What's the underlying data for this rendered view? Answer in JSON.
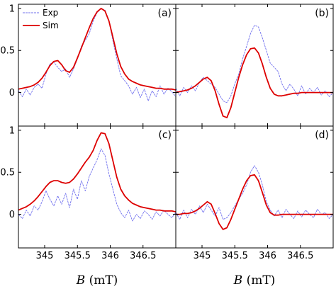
{
  "chart_data": {
    "type": "line",
    "layout": "2x2 grid",
    "xlim": [
      344.6,
      347.0
    ],
    "xticks": [
      "345",
      "345.5",
      "346",
      "346.5"
    ],
    "xtick_values": [
      345,
      345.5,
      346,
      346.5
    ],
    "xlabel_italic": "B",
    "xlabel_unit": "(mT)",
    "xlabels_shown_under": [
      "c",
      "d"
    ],
    "ylim": [
      -0.4,
      1.05
    ],
    "yticks": [
      "0",
      "0.5",
      "1"
    ],
    "ytick_values": [
      0,
      0.5,
      1
    ],
    "legend": {
      "panel": "a",
      "placement": "top-left",
      "entries": [
        {
          "label": "Exp",
          "color": "#7070ee",
          "style": "thin dashed"
        },
        {
          "label": "Sim",
          "color": "#dd0000",
          "style": "solid"
        }
      ]
    },
    "panels": [
      {
        "label": "(a)",
        "series": [
          {
            "name": "Exp",
            "color": "#7070ee",
            "x": [
              344.6,
              344.66,
              344.72,
              344.78,
              344.84,
              344.9,
              344.96,
              345.02,
              345.08,
              345.14,
              345.2,
              345.26,
              345.32,
              345.38,
              345.44,
              345.5,
              345.56,
              345.62,
              345.68,
              345.74,
              345.8,
              345.86,
              345.92,
              345.98,
              346.04,
              346.1,
              346.16,
              346.22,
              346.28,
              346.34,
              346.4,
              346.46,
              346.52,
              346.58,
              346.64,
              346.7,
              346.76,
              346.82,
              346.88,
              346.94,
              347.0
            ],
            "y": [
              0.02,
              -0.05,
              0.04,
              -0.03,
              0.06,
              0.1,
              0.05,
              0.22,
              0.34,
              0.36,
              0.3,
              0.25,
              0.28,
              0.18,
              0.28,
              0.4,
              0.55,
              0.62,
              0.7,
              0.85,
              0.95,
              1.0,
              0.98,
              0.85,
              0.62,
              0.4,
              0.2,
              0.14,
              0.08,
              -0.02,
              0.06,
              -0.06,
              0.04,
              -0.1,
              0.02,
              -0.05,
              0.08,
              -0.02,
              0.05,
              0.01,
              -0.05
            ]
          },
          {
            "name": "Sim",
            "color": "#dd0000",
            "x": [
              344.6,
              344.66,
              344.72,
              344.78,
              344.84,
              344.9,
              344.96,
              345.02,
              345.08,
              345.14,
              345.2,
              345.26,
              345.32,
              345.38,
              345.44,
              345.5,
              345.56,
              345.62,
              345.68,
              345.74,
              345.8,
              345.86,
              345.92,
              345.98,
              346.04,
              346.1,
              346.16,
              346.22,
              346.28,
              346.34,
              346.4,
              346.46,
              346.52,
              346.58,
              346.64,
              346.7,
              346.76,
              346.82,
              346.88,
              346.94,
              347.0
            ],
            "y": [
              0.04,
              0.05,
              0.06,
              0.07,
              0.09,
              0.12,
              0.17,
              0.24,
              0.32,
              0.37,
              0.38,
              0.33,
              0.26,
              0.24,
              0.3,
              0.41,
              0.53,
              0.65,
              0.77,
              0.88,
              0.96,
              1.0,
              0.97,
              0.85,
              0.66,
              0.46,
              0.31,
              0.22,
              0.16,
              0.13,
              0.11,
              0.09,
              0.08,
              0.07,
              0.06,
              0.05,
              0.05,
              0.04,
              0.04,
              0.04,
              0.03
            ]
          }
        ]
      },
      {
        "label": "(b)",
        "series": [
          {
            "name": "Exp",
            "color": "#7070ee",
            "x": [
              344.6,
              344.66,
              344.72,
              344.78,
              344.84,
              344.9,
              344.96,
              345.02,
              345.08,
              345.14,
              345.2,
              345.26,
              345.32,
              345.38,
              345.44,
              345.5,
              345.56,
              345.62,
              345.68,
              345.74,
              345.8,
              345.86,
              345.92,
              345.98,
              346.04,
              346.1,
              346.16,
              346.22,
              346.28,
              346.34,
              346.4,
              346.46,
              346.52,
              346.58,
              346.64,
              346.7,
              346.76,
              346.82,
              346.88,
              346.94,
              347.0
            ],
            "y": [
              0.05,
              -0.04,
              0.06,
              0.0,
              0.08,
              0.02,
              0.12,
              0.18,
              0.14,
              0.1,
              0.06,
              -0.02,
              -0.1,
              -0.12,
              -0.04,
              0.1,
              0.22,
              0.4,
              0.55,
              0.7,
              0.8,
              0.78,
              0.65,
              0.5,
              0.35,
              0.3,
              0.25,
              0.1,
              0.02,
              0.1,
              0.04,
              -0.04,
              0.08,
              -0.02,
              0.05,
              0.0,
              0.06,
              -0.03,
              0.02,
              -0.05,
              0.0
            ]
          },
          {
            "name": "Sim",
            "color": "#dd0000",
            "x": [
              344.6,
              344.66,
              344.72,
              344.78,
              344.84,
              344.9,
              344.96,
              345.02,
              345.08,
              345.14,
              345.2,
              345.26,
              345.32,
              345.38,
              345.44,
              345.5,
              345.56,
              345.62,
              345.68,
              345.74,
              345.8,
              345.86,
              345.92,
              345.98,
              346.04,
              346.1,
              346.16,
              346.22,
              346.28,
              346.34,
              346.4,
              346.46,
              346.52,
              346.58,
              346.64,
              346.7,
              346.76,
              346.82,
              346.88,
              346.94,
              347.0
            ],
            "y": [
              0.0,
              0.01,
              0.02,
              0.03,
              0.05,
              0.08,
              0.12,
              0.16,
              0.18,
              0.14,
              0.02,
              -0.14,
              -0.28,
              -0.3,
              -0.18,
              0.0,
              0.18,
              0.33,
              0.45,
              0.52,
              0.53,
              0.47,
              0.34,
              0.18,
              0.05,
              -0.02,
              -0.04,
              -0.04,
              -0.03,
              -0.02,
              -0.01,
              -0.01,
              0.0,
              0.0,
              0.0,
              0.0,
              0.0,
              0.0,
              0.0,
              0.0,
              0.0
            ]
          }
        ]
      },
      {
        "label": "(c)",
        "series": [
          {
            "name": "Exp",
            "color": "#7070ee",
            "x": [
              344.6,
              344.66,
              344.72,
              344.78,
              344.84,
              344.9,
              344.96,
              345.02,
              345.08,
              345.14,
              345.2,
              345.26,
              345.32,
              345.38,
              345.44,
              345.5,
              345.56,
              345.62,
              345.68,
              345.74,
              345.8,
              345.86,
              345.92,
              345.98,
              346.04,
              346.1,
              346.16,
              346.22,
              346.28,
              346.34,
              346.4,
              346.46,
              346.52,
              346.58,
              346.64,
              346.7,
              346.76,
              346.82,
              346.88,
              346.94,
              347.0
            ],
            "y": [
              0.0,
              -0.05,
              0.05,
              -0.02,
              0.1,
              0.05,
              0.15,
              0.28,
              0.18,
              0.1,
              0.22,
              0.12,
              0.25,
              0.08,
              0.3,
              0.18,
              0.4,
              0.28,
              0.45,
              0.55,
              0.65,
              0.78,
              0.7,
              0.48,
              0.3,
              0.12,
              0.02,
              -0.04,
              0.05,
              -0.08,
              0.0,
              -0.05,
              0.04,
              0.0,
              -0.06,
              0.03,
              -0.02,
              0.05,
              0.0,
              -0.04,
              0.02
            ]
          },
          {
            "name": "Sim",
            "color": "#dd0000",
            "x": [
              344.6,
              344.66,
              344.72,
              344.78,
              344.84,
              344.9,
              344.96,
              345.02,
              345.08,
              345.14,
              345.2,
              345.26,
              345.32,
              345.38,
              345.44,
              345.5,
              345.56,
              345.62,
              345.68,
              345.74,
              345.8,
              345.86,
              345.92,
              345.98,
              346.04,
              346.1,
              346.16,
              346.22,
              346.28,
              346.34,
              346.4,
              346.46,
              346.52,
              346.58,
              346.64,
              346.7,
              346.76,
              346.82,
              346.88,
              346.94,
              347.0
            ],
            "y": [
              0.05,
              0.07,
              0.09,
              0.12,
              0.16,
              0.21,
              0.27,
              0.33,
              0.38,
              0.4,
              0.4,
              0.38,
              0.37,
              0.38,
              0.42,
              0.48,
              0.55,
              0.62,
              0.68,
              0.76,
              0.88,
              0.97,
              0.96,
              0.84,
              0.64,
              0.44,
              0.3,
              0.22,
              0.17,
              0.13,
              0.11,
              0.09,
              0.08,
              0.07,
              0.06,
              0.05,
              0.05,
              0.04,
              0.04,
              0.04,
              0.03
            ]
          }
        ]
      },
      {
        "label": "(d)",
        "series": [
          {
            "name": "Exp",
            "color": "#7070ee",
            "x": [
              344.6,
              344.66,
              344.72,
              344.78,
              344.84,
              344.9,
              344.96,
              345.02,
              345.08,
              345.14,
              345.2,
              345.26,
              345.32,
              345.38,
              345.44,
              345.5,
              345.56,
              345.62,
              345.68,
              345.74,
              345.8,
              345.86,
              345.92,
              345.98,
              346.04,
              346.1,
              346.16,
              346.22,
              346.28,
              346.34,
              346.4,
              346.46,
              346.52,
              346.58,
              346.64,
              346.7,
              346.76,
              346.82,
              346.88,
              346.94,
              347.0
            ],
            "y": [
              0.02,
              -0.06,
              0.05,
              -0.04,
              0.06,
              0.0,
              0.1,
              0.02,
              0.12,
              0.05,
              -0.02,
              0.08,
              -0.06,
              -0.04,
              0.02,
              0.1,
              0.18,
              0.25,
              0.35,
              0.5,
              0.58,
              0.5,
              0.35,
              0.15,
              0.05,
              -0.02,
              0.05,
              -0.04,
              0.06,
              0.0,
              -0.05,
              0.04,
              -0.03,
              0.05,
              0.0,
              -0.04,
              0.06,
              0.0,
              0.02,
              -0.05,
              0.0
            ]
          },
          {
            "name": "Sim",
            "color": "#dd0000",
            "x": [
              344.6,
              344.66,
              344.72,
              344.78,
              344.84,
              344.9,
              344.96,
              345.02,
              345.08,
              345.14,
              345.2,
              345.26,
              345.32,
              345.38,
              345.44,
              345.5,
              345.56,
              345.62,
              345.68,
              345.74,
              345.8,
              345.86,
              345.92,
              345.98,
              346.04,
              346.1,
              346.16,
              346.22,
              346.28,
              346.34,
              346.4,
              346.46,
              346.52,
              346.58,
              346.64,
              346.7,
              346.76,
              346.82,
              346.88,
              346.94,
              347.0
            ],
            "y": [
              0.0,
              0.0,
              0.01,
              0.01,
              0.02,
              0.04,
              0.07,
              0.11,
              0.15,
              0.12,
              0.01,
              -0.11,
              -0.18,
              -0.16,
              -0.06,
              0.06,
              0.18,
              0.3,
              0.4,
              0.46,
              0.47,
              0.4,
              0.26,
              0.11,
              0.02,
              -0.01,
              -0.01,
              0.0,
              0.0,
              0.0,
              0.0,
              0.0,
              0.0,
              0.0,
              0.0,
              0.0,
              0.0,
              0.0,
              0.0,
              0.0,
              0.0
            ]
          }
        ]
      }
    ]
  }
}
